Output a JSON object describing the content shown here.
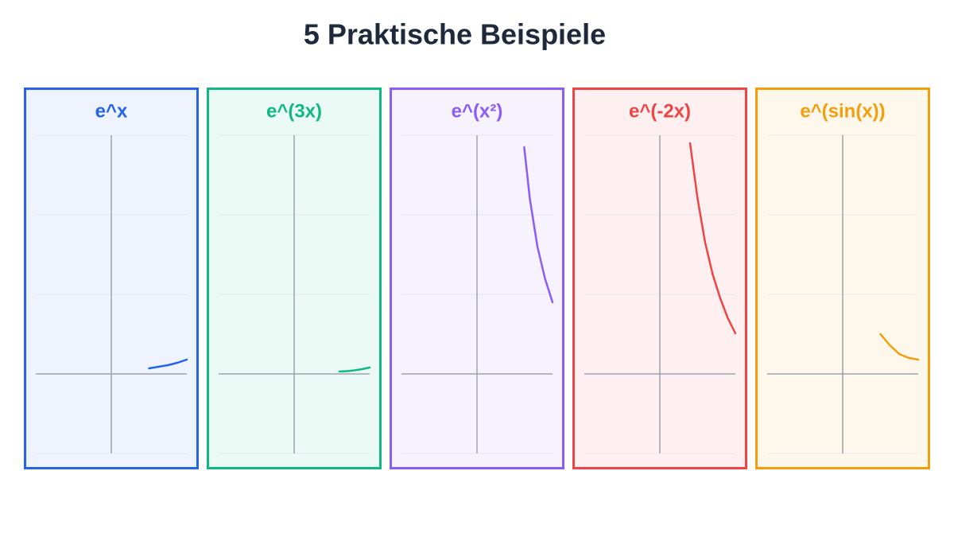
{
  "title": "5 Praktische Beispiele",
  "chart_data": [
    {
      "type": "line",
      "title": "e^x",
      "color": "#2563eb",
      "xlim": [
        -2,
        2
      ],
      "ylim": [
        -1,
        3
      ],
      "yticks": [
        -1,
        0,
        1,
        2,
        3
      ],
      "grid": true,
      "x": [
        1,
        1.25,
        1.5,
        1.75,
        2
      ],
      "values": [
        0.07,
        0.09,
        0.11,
        0.14,
        0.18
      ]
    },
    {
      "type": "line",
      "title": "e^(3x)",
      "color": "#10b981",
      "xlim": [
        -2,
        2
      ],
      "ylim": [
        -1,
        3
      ],
      "yticks": [
        -1,
        0,
        1,
        2,
        3
      ],
      "grid": true,
      "x": [
        1.2,
        1.4,
        1.6,
        1.8,
        2
      ],
      "values": [
        0.03,
        0.035,
        0.045,
        0.06,
        0.08
      ]
    },
    {
      "type": "line",
      "title": "e^(x²)",
      "color": "#8b5cf6",
      "xlim": [
        -2,
        2
      ],
      "ylim": [
        -1,
        3
      ],
      "yticks": [
        -1,
        0,
        1,
        2,
        3
      ],
      "grid": true,
      "x": [
        1.25,
        1.4,
        1.6,
        1.8,
        2
      ],
      "values": [
        2.85,
        2.2,
        1.6,
        1.2,
        0.9
      ]
    },
    {
      "type": "line",
      "title": "e^(-2x)",
      "color": "#ef4444",
      "xlim": [
        -2,
        2
      ],
      "ylim": [
        -1,
        3
      ],
      "yticks": [
        -1,
        0,
        1,
        2,
        3
      ],
      "grid": true,
      "x": [
        0.8,
        1.0,
        1.2,
        1.4,
        1.6,
        1.8,
        2.0
      ],
      "values": [
        2.9,
        2.2,
        1.65,
        1.25,
        0.95,
        0.7,
        0.51
      ]
    },
    {
      "type": "line",
      "title": "e^(sin(x))",
      "color": "#f59e0b",
      "xlim": [
        -2,
        2
      ],
      "ylim": [
        -1,
        3
      ],
      "yticks": [
        -1,
        0,
        1,
        2,
        3
      ],
      "grid": true,
      "x": [
        1,
        1.25,
        1.5,
        1.75,
        2
      ],
      "values": [
        0.5,
        0.36,
        0.25,
        0.2,
        0.18
      ]
    }
  ]
}
